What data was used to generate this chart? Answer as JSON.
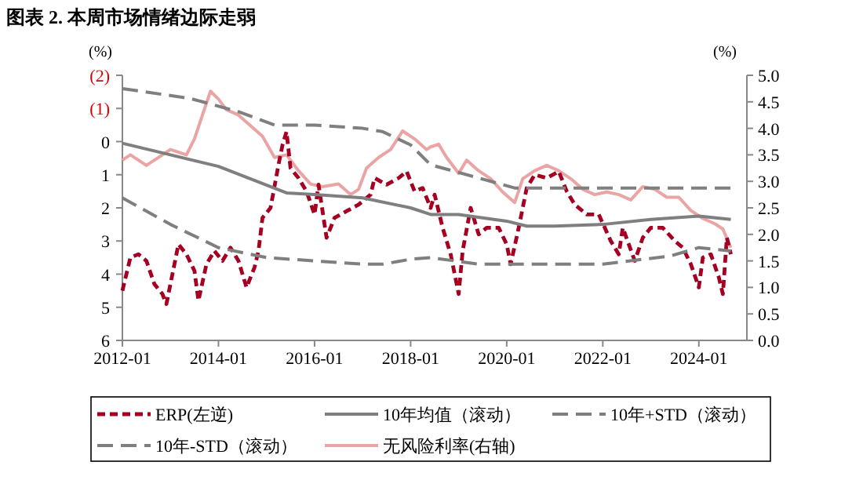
{
  "chart_data": {
    "type": "line",
    "title": "图表 2. 本周市场情绪边际走弱",
    "ylabel": "(%)",
    "y2label": "(%)",
    "xlim": [
      "2012-01",
      "2025-01"
    ],
    "xticks": [
      "2012-01",
      "2014-01",
      "2016-01",
      "2018-01",
      "2020-01",
      "2022-01",
      "2024-01"
    ],
    "ylim": [
      6,
      -2
    ],
    "yticks": [
      {
        "value": -2,
        "label": "(2)"
      },
      {
        "value": -1,
        "label": "(1)"
      },
      0,
      1,
      2,
      3,
      4,
      5,
      6
    ],
    "y2lim": [
      0,
      5
    ],
    "y2ticks": [
      {
        "value": 0,
        "label": "0.0"
      },
      {
        "value": 0.5,
        "label": "0.5"
      },
      {
        "value": 1,
        "label": "1.0"
      },
      {
        "value": 1.5,
        "label": "1.5"
      },
      {
        "value": 2,
        "label": "2.0"
      },
      {
        "value": 2.5,
        "label": "2.5"
      },
      {
        "value": 3,
        "label": "3.0"
      },
      {
        "value": 3.5,
        "label": "3.5"
      },
      {
        "value": 4,
        "label": "4.0"
      },
      {
        "value": 4.5,
        "label": "4.5"
      },
      {
        "value": 5,
        "label": "5.0"
      }
    ],
    "grid": false,
    "legend": "bottom",
    "series": [
      {
        "name": "ERP(左逆)",
        "color": "#a50021",
        "line_style": "dashed",
        "x": [
          "2012-01",
          "2012-03",
          "2012-05",
          "2012-07",
          "2012-09",
          "2012-11",
          "2012-12",
          "2013-03",
          "2013-05",
          "2013-07",
          "2013-08",
          "2013-10",
          "2013-12",
          "2014-02",
          "2014-04",
          "2014-06",
          "2014-08",
          "2014-10",
          "2014-11",
          "2014-12",
          "2015-02",
          "2015-04",
          "2015-05",
          "2015-06",
          "2015-07",
          "2015-09",
          "2015-11",
          "2016-01",
          "2016-02",
          "2016-04",
          "2016-06",
          "2016-09",
          "2016-12",
          "2017-03",
          "2017-04",
          "2017-07",
          "2017-10",
          "2017-12",
          "2018-02",
          "2018-04",
          "2018-06",
          "2018-07",
          "2018-09",
          "2018-11",
          "2019-01",
          "2019-02",
          "2019-04",
          "2019-06",
          "2019-08",
          "2019-11",
          "2020-01",
          "2020-02",
          "2020-04",
          "2020-06",
          "2020-08",
          "2020-11",
          "2021-02",
          "2021-04",
          "2021-06",
          "2021-09",
          "2021-12",
          "2022-03",
          "2022-05",
          "2022-06",
          "2022-09",
          "2022-11",
          "2023-01",
          "2023-04",
          "2023-07",
          "2023-09",
          "2023-11",
          "2024-01",
          "2024-02",
          "2024-04",
          "2024-06",
          "2024-07",
          "2024-08",
          "2024-09"
        ],
        "values": [
          4.5,
          3.5,
          3.4,
          3.6,
          4.3,
          4.6,
          4.9,
          3.1,
          3.4,
          3.9,
          4.8,
          3.7,
          3.3,
          3.6,
          3.2,
          3.6,
          4.4,
          3.8,
          3.3,
          2.3,
          2.0,
          0.7,
          0.1,
          -0.3,
          0.8,
          1.1,
          1.5,
          2.2,
          1.3,
          2.9,
          2.3,
          2.1,
          1.9,
          1.6,
          1.1,
          1.3,
          1.1,
          0.9,
          1.5,
          1.4,
          2.0,
          1.6,
          2.6,
          3.4,
          4.6,
          3.3,
          2.0,
          2.8,
          2.6,
          2.6,
          3.1,
          3.7,
          2.6,
          1.4,
          1.0,
          1.1,
          0.9,
          1.5,
          1.9,
          2.2,
          2.2,
          3.0,
          3.4,
          2.6,
          3.6,
          2.9,
          2.6,
          2.6,
          3.0,
          3.2,
          3.7,
          4.4,
          3.5,
          3.4,
          4.1,
          4.6,
          2.9,
          3.4
        ]
      },
      {
        "name": "10年均值（滚动）",
        "color": "#7f7f7f",
        "line_style": "solid",
        "x": [
          "2012-01",
          "2014-01",
          "2015-06",
          "2016-01",
          "2017-01",
          "2018-01",
          "2018-06",
          "2019-01",
          "2020-01",
          "2020-06",
          "2021-01",
          "2022-01",
          "2023-01",
          "2024-01",
          "2024-09"
        ],
        "values": [
          0.05,
          0.75,
          1.55,
          1.6,
          1.7,
          2.0,
          2.2,
          2.2,
          2.4,
          2.55,
          2.55,
          2.5,
          2.35,
          2.25,
          2.35
        ]
      },
      {
        "name": "10年+STD（滚动）",
        "color": "#7f7f7f",
        "line_style": "dashed",
        "x": [
          "2012-01",
          "2013-01",
          "2014-01",
          "2015-01",
          "2016-01",
          "2017-01",
          "2017-06",
          "2018-01",
          "2018-06",
          "2019-06",
          "2022-01",
          "2023-06",
          "2024-01",
          "2024-09"
        ],
        "values": [
          1.7,
          2.5,
          3.2,
          3.5,
          3.6,
          3.7,
          3.7,
          3.55,
          3.5,
          3.7,
          3.7,
          3.45,
          3.2,
          3.3
        ]
      },
      {
        "name": "10年-STD（滚动）",
        "color": "#7f7f7f",
        "line_style": "dashed",
        "x": [
          "2012-01",
          "2013-06",
          "2014-06",
          "2015-03",
          "2016-01",
          "2017-01",
          "2017-06",
          "2018-01",
          "2018-06",
          "2020-03",
          "2022-01",
          "2024-09"
        ],
        "values": [
          -1.6,
          -1.3,
          -0.9,
          -0.5,
          -0.5,
          -0.4,
          -0.3,
          0.1,
          0.7,
          1.4,
          1.4,
          1.4
        ]
      },
      {
        "name": "无风险利率(右轴)",
        "color": "#eba4a4",
        "line_style": "solid",
        "axis": "y2",
        "x": [
          "2012-01",
          "2012-03",
          "2012-07",
          "2012-09",
          "2013-01",
          "2013-05",
          "2013-07",
          "2013-09",
          "2013-11",
          "2014-01",
          "2014-03",
          "2014-06",
          "2014-09",
          "2014-12",
          "2015-03",
          "2015-06",
          "2015-09",
          "2015-12",
          "2016-03",
          "2016-07",
          "2016-10",
          "2016-12",
          "2017-02",
          "2017-05",
          "2017-08",
          "2017-11",
          "2018-02",
          "2018-05",
          "2018-06",
          "2018-08",
          "2018-10",
          "2019-01",
          "2019-03",
          "2019-06",
          "2019-09",
          "2019-12",
          "2020-03",
          "2020-05",
          "2020-08",
          "2020-11",
          "2021-02",
          "2021-05",
          "2021-08",
          "2021-11",
          "2022-02",
          "2022-05",
          "2022-08",
          "2022-11",
          "2023-02",
          "2023-05",
          "2023-08",
          "2023-11",
          "2024-02",
          "2024-05",
          "2024-07",
          "2024-09"
        ],
        "values": [
          3.4,
          3.5,
          3.3,
          3.4,
          3.6,
          3.5,
          3.8,
          4.25,
          4.7,
          4.55,
          4.35,
          4.25,
          4.05,
          3.85,
          3.45,
          3.5,
          3.2,
          2.95,
          2.9,
          2.95,
          2.75,
          2.85,
          3.25,
          3.45,
          3.6,
          3.95,
          3.8,
          3.6,
          3.65,
          3.7,
          3.45,
          3.15,
          3.4,
          3.2,
          3.05,
          2.8,
          2.6,
          3.05,
          3.2,
          3.3,
          3.2,
          3.05,
          2.85,
          2.75,
          2.8,
          2.75,
          2.65,
          2.9,
          2.85,
          2.7,
          2.7,
          2.45,
          2.3,
          2.2,
          2.1,
          1.75
        ]
      }
    ]
  }
}
